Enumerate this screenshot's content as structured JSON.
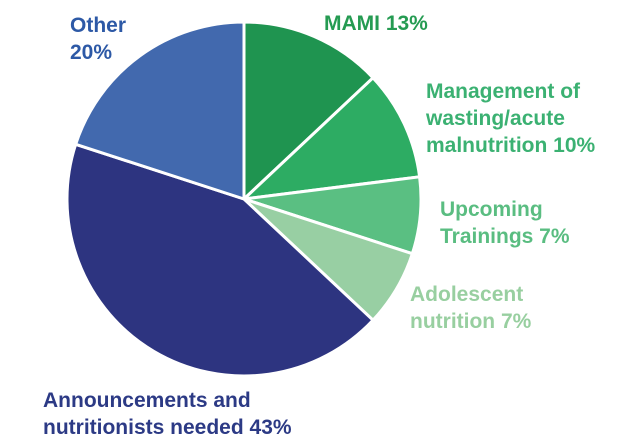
{
  "chart_data": {
    "type": "pie",
    "title": "",
    "categories": [
      "MAMI",
      "Management of wasting/acute malnutrition",
      "Upcoming Trainings",
      "Adolescent nutrition",
      "Announcements and nutritionists needed",
      "Other"
    ],
    "values": [
      13,
      10,
      7,
      7,
      43,
      20
    ],
    "colors": [
      "#1f9450",
      "#2dac63",
      "#5abf82",
      "#98cfa3",
      "#2d3480",
      "#4269ae"
    ],
    "start_angle_deg": 0,
    "direction": "clockwise",
    "stroke_color": "#ffffff",
    "stroke_width": 3,
    "legend_position": "labels-around-pie"
  },
  "labels": {
    "other": {
      "text": "Other\n20%",
      "color": "#2d59a6"
    },
    "mami": {
      "text": "MAMI 13%",
      "color": "#259b52"
    },
    "management": {
      "text": "Management of\nwasting/acute\nmalnutrition 10%",
      "color": "#3bb172"
    },
    "upcoming": {
      "text": "Upcoming\nTrainings 7%",
      "color": "#5abd81"
    },
    "adolescent": {
      "text": "Adolescent\nnutrition 7%",
      "color": "#98cfa0"
    },
    "announcements": {
      "text": "Announcements and\nnutritionists needed 43%",
      "color": "#2c3a85"
    }
  }
}
